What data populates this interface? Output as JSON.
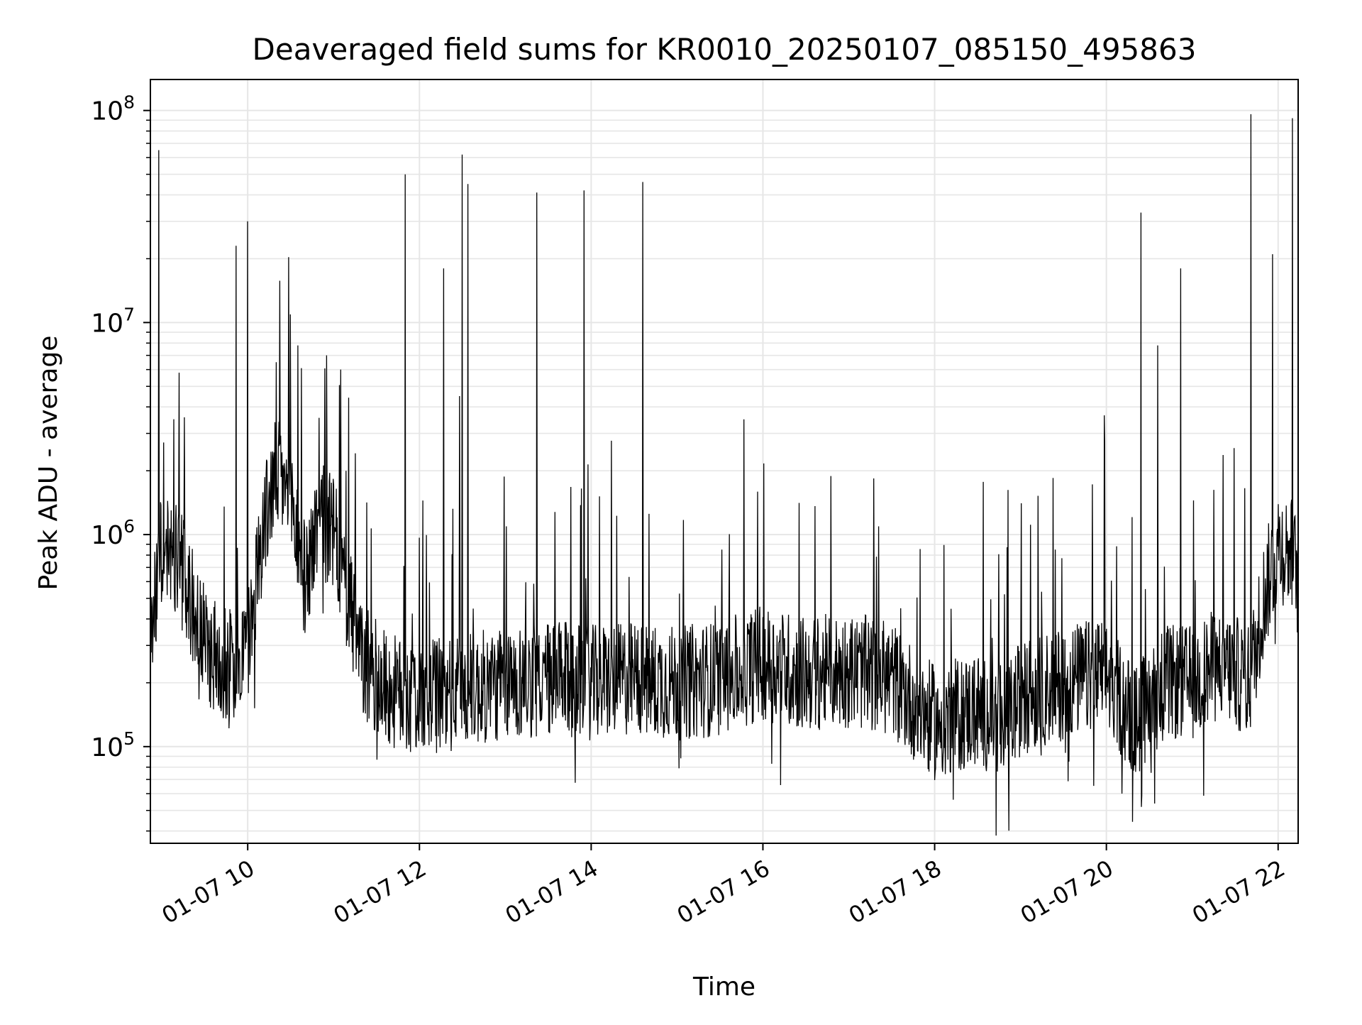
{
  "chart_data": {
    "type": "line",
    "title": "Deaveraged field sums for KR0010_20250107_085150_495863",
    "xlabel": "Time",
    "ylabel": "Peak ADU - average",
    "x_scale": "time",
    "y_scale": "log",
    "xlim": [
      "2025-01-07 08:52",
      "2025-01-07 22:14"
    ],
    "ylim": [
      35000,
      140000000
    ],
    "x_tick_labels": [
      "01-07 10",
      "01-07 12",
      "01-07 14",
      "01-07 16",
      "01-07 18",
      "01-07 20",
      "01-07 22"
    ],
    "x_tick_times": [
      "2025-01-07 10:00",
      "2025-01-07 12:00",
      "2025-01-07 14:00",
      "2025-01-07 16:00",
      "2025-01-07 18:00",
      "2025-01-07 20:00",
      "2025-01-07 22:00"
    ],
    "y_tick_bases": [
      "10",
      "10",
      "10",
      "10"
    ],
    "y_tick_exponents": [
      "5",
      "6",
      "7",
      "8"
    ],
    "grid": true,
    "line_color": "#000000",
    "grid_color": "#e6e6e6",
    "series": [
      {
        "values": [
          [
            "2025-01-07 08:52",
            300000
          ],
          [
            "2025-01-07 09:00",
            900000
          ],
          [
            "2025-01-07 09:10",
            800000
          ],
          [
            "2025-01-07 09:20",
            500000
          ],
          [
            "2025-01-07 09:30",
            300000
          ],
          [
            "2025-01-07 09:40",
            250000
          ],
          [
            "2025-01-07 09:50",
            250000
          ],
          [
            "2025-01-07 10:00",
            300000
          ],
          [
            "2025-01-07 10:10",
            1000000
          ],
          [
            "2025-01-07 10:20",
            2000000
          ],
          [
            "2025-01-07 10:30",
            1500000
          ],
          [
            "2025-01-07 10:40",
            600000
          ],
          [
            "2025-01-07 10:50",
            1200000
          ],
          [
            "2025-01-07 11:00",
            1000000
          ],
          [
            "2025-01-07 11:10",
            500000
          ],
          [
            "2025-01-07 11:20",
            250000
          ],
          [
            "2025-01-07 11:40",
            180000
          ],
          [
            "2025-01-07 12:00",
            170000
          ],
          [
            "2025-01-07 12:30",
            180000
          ],
          [
            "2025-01-07 13:00",
            200000
          ],
          [
            "2025-01-07 13:30",
            210000
          ],
          [
            "2025-01-07 14:00",
            200000
          ],
          [
            "2025-01-07 14:30",
            210000
          ],
          [
            "2025-01-07 15:00",
            200000
          ],
          [
            "2025-01-07 15:30",
            210000
          ],
          [
            "2025-01-07 16:00",
            250000
          ],
          [
            "2025-01-07 16:30",
            220000
          ],
          [
            "2025-01-07 17:00",
            230000
          ],
          [
            "2025-01-07 17:30",
            210000
          ],
          [
            "2025-01-07 17:50",
            150000
          ],
          [
            "2025-01-07 18:00",
            130000
          ],
          [
            "2025-01-07 18:30",
            150000
          ],
          [
            "2025-01-07 18:50",
            130000
          ],
          [
            "2025-01-07 19:00",
            170000
          ],
          [
            "2025-01-07 19:30",
            200000
          ],
          [
            "2025-01-07 20:00",
            220000
          ],
          [
            "2025-01-07 20:20",
            130000
          ],
          [
            "2025-01-07 20:40",
            200000
          ],
          [
            "2025-01-07 21:00",
            200000
          ],
          [
            "2025-01-07 21:20",
            250000
          ],
          [
            "2025-01-07 21:40",
            200000
          ],
          [
            "2025-01-07 21:50",
            500000
          ],
          [
            "2025-01-07 22:00",
            900000
          ],
          [
            "2025-01-07 22:10",
            800000
          ],
          [
            "2025-01-07 22:14",
            600000
          ]
        ]
      }
    ],
    "spikes": [
      [
        "2025-01-07 08:58",
        65000000
      ],
      [
        "2025-01-07 09:12",
        5800000
      ],
      [
        "2025-01-07 09:52",
        23000000
      ],
      [
        "2025-01-07 10:00",
        30000000
      ],
      [
        "2025-01-07 10:20",
        6500000
      ],
      [
        "2025-01-07 10:35",
        7800000
      ],
      [
        "2025-01-07 10:55",
        7000000
      ],
      [
        "2025-01-07 11:05",
        6000000
      ],
      [
        "2025-01-07 11:50",
        50000000
      ],
      [
        "2025-01-07 12:17",
        18000000
      ],
      [
        "2025-01-07 12:28",
        4500000
      ],
      [
        "2025-01-07 12:30",
        62000000
      ],
      [
        "2025-01-07 12:34",
        45000000
      ],
      [
        "2025-01-07 13:22",
        41000000
      ],
      [
        "2025-01-07 13:55",
        42000000
      ],
      [
        "2025-01-07 14:36",
        46000000
      ],
      [
        "2025-01-07 20:24",
        33000000
      ],
      [
        "2025-01-07 20:36",
        7800000
      ],
      [
        "2025-01-07 20:52",
        18000000
      ],
      [
        "2025-01-07 21:41",
        96000000
      ],
      [
        "2025-01-07 21:56",
        21000000
      ],
      [
        "2025-01-07 22:10",
        92000000
      ]
    ]
  }
}
